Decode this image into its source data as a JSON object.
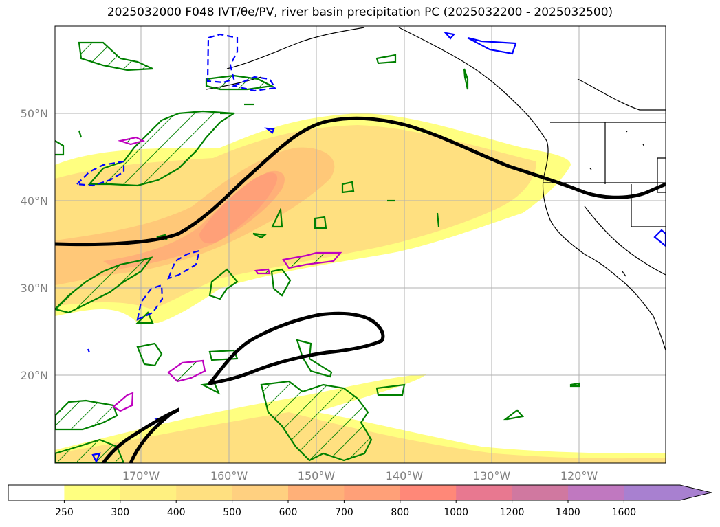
{
  "title": "2025032000 F048 IVT/θe/PV, river basin precipitation PC (2025032200 - 2025032500)",
  "map": {
    "lat_ticks": [
      "50°N",
      "40°N",
      "30°N",
      "20°N"
    ],
    "lon_ticks": [
      "170°W",
      "160°W",
      "150°W",
      "140°W",
      "130°W",
      "120°W"
    ],
    "colors": {
      "land_line": "#000000",
      "theta_e_contour": "#008000",
      "pv_contour": "#0000ff",
      "precip_pc_contour": "#bf00bf",
      "ivt_line": "#000000",
      "grid": "#b0b0b0"
    }
  },
  "colorbar": {
    "tick_labels": [
      "250",
      "300",
      "400",
      "500",
      "600",
      "700",
      "800",
      "1000",
      "1200",
      "1400",
      "1600"
    ],
    "colors": [
      "#ffffff",
      "#ffff80",
      "#fff080",
      "#ffe080",
      "#ffd080",
      "#ffb078",
      "#ffa078",
      "#ff8878",
      "#e87890",
      "#d078a0",
      "#c078c0",
      "#a880d0"
    ],
    "extend": "max"
  }
}
